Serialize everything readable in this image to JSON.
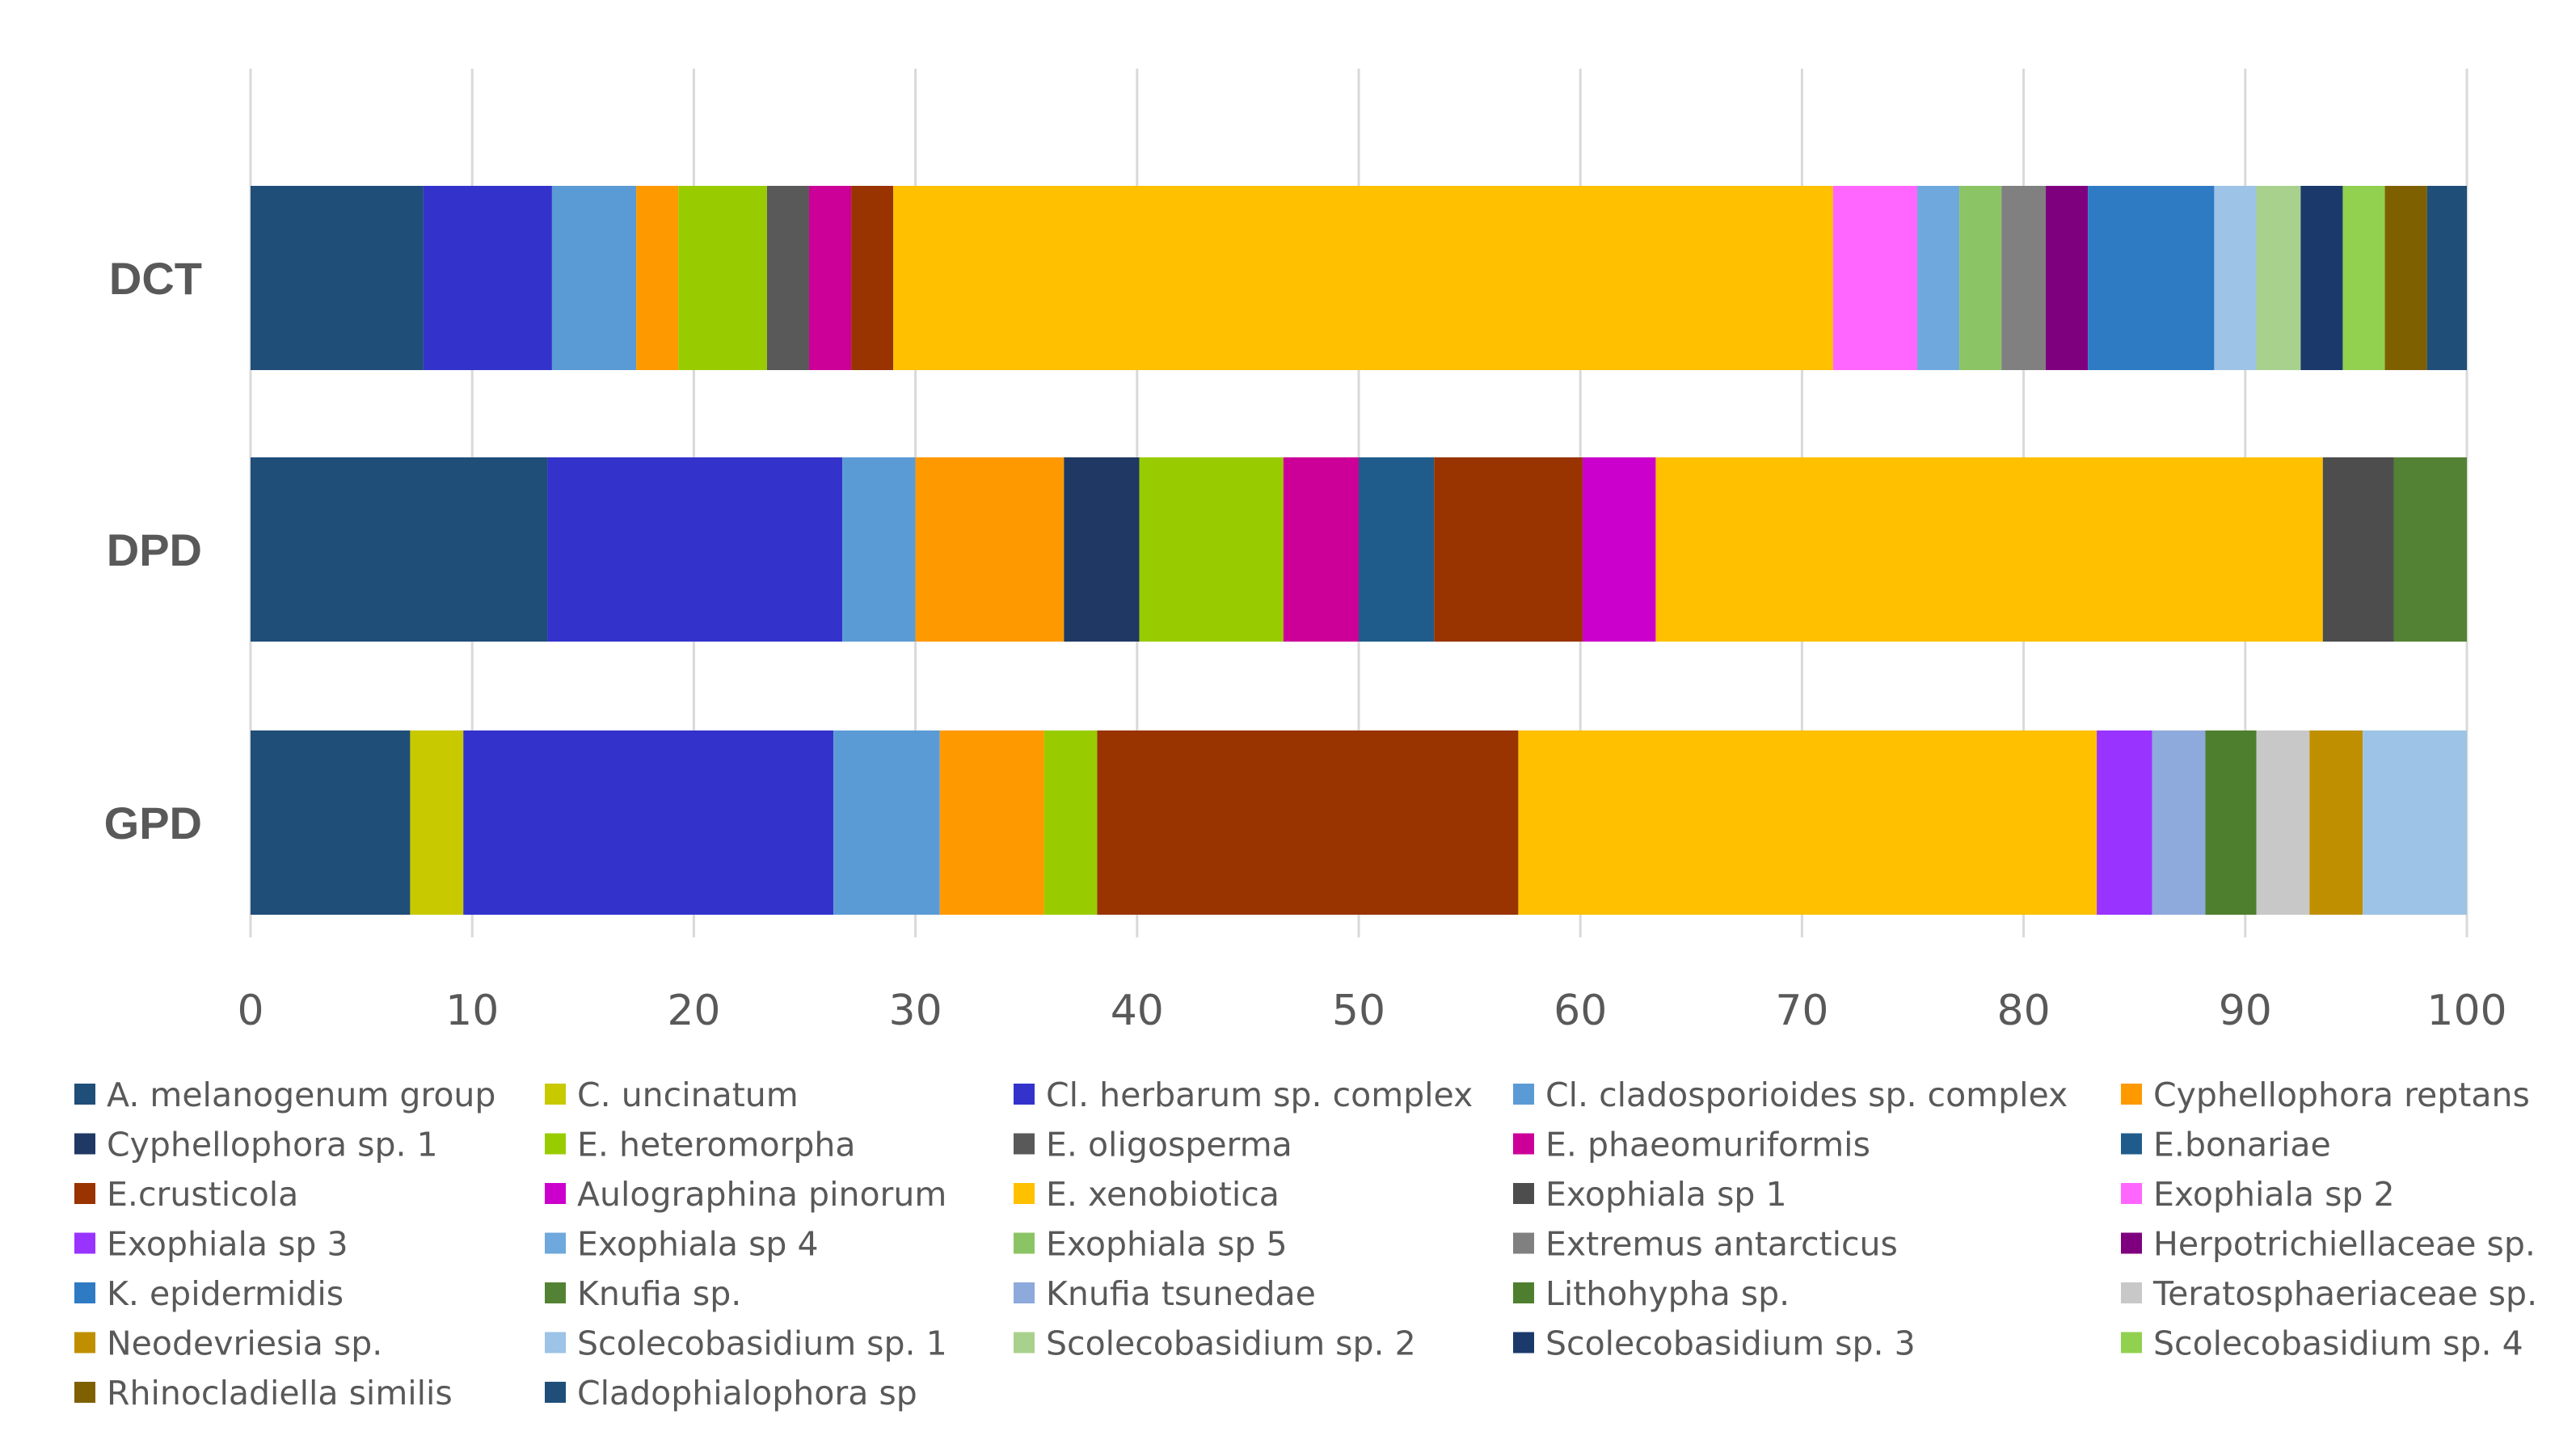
{
  "chart_data": {
    "type": "bar",
    "orientation": "horizontal",
    "stacked": true,
    "title": "",
    "xlabel": "",
    "ylabel": "",
    "xlim": [
      0,
      100
    ],
    "xticks": [
      0,
      10,
      20,
      30,
      40,
      50,
      60,
      70,
      80,
      90,
      100
    ],
    "grid": true,
    "legend_position": "bottom",
    "categories": [
      "DCT",
      "DPD",
      "GPD"
    ],
    "series": [
      {
        "name": "A. melanogenum group",
        "color": "#1F4E79",
        "values": [
          7.8,
          13.4,
          7.2
        ]
      },
      {
        "name": "C. uncinatum",
        "color": "#C9C900",
        "values": [
          0,
          0,
          2.4
        ]
      },
      {
        "name": "Cl. herbarum sp. complex",
        "color": "#3333CC",
        "values": [
          5.8,
          13.3,
          16.7
        ]
      },
      {
        "name": "Cl. cladosporioides sp. complex",
        "color": "#5B9BD5",
        "values": [
          3.8,
          3.3,
          4.8
        ]
      },
      {
        "name": "Cyphellophora reptans",
        "color": "#FF9900",
        "values": [
          1.9,
          6.7,
          4.7
        ]
      },
      {
        "name": "Cyphellophora sp. 1",
        "color": "#203864",
        "values": [
          0,
          3.4,
          0
        ]
      },
      {
        "name": "E. heteromorpha",
        "color": "#99CC00",
        "values": [
          4.0,
          6.5,
          2.4
        ]
      },
      {
        "name": "E. oligosperma",
        "color": "#595959",
        "values": [
          1.9,
          0,
          0
        ]
      },
      {
        "name": "E. phaeomuriformis",
        "color": "#CC0099",
        "values": [
          1.9,
          3.4,
          0
        ]
      },
      {
        "name": "E.bonariae",
        "color": "#1F5C8B",
        "values": [
          0,
          3.4,
          0
        ]
      },
      {
        "name": "E.crusticola",
        "color": "#993300",
        "values": [
          1.9,
          6.7,
          19.0
        ]
      },
      {
        "name": "Aulographina pinorum",
        "color": "#CC00CC",
        "values": [
          0,
          3.3,
          0
        ]
      },
      {
        "name": "E. xenobiotica",
        "color": "#FFC000",
        "values": [
          42.4,
          30.1,
          26.1
        ]
      },
      {
        "name": "Exophiala sp 1",
        "color": "#4D4D4D",
        "values": [
          0,
          3.2,
          0
        ]
      },
      {
        "name": "Exophiala sp 2",
        "color": "#FF66FF",
        "values": [
          3.8,
          0,
          0
        ]
      },
      {
        "name": "Exophiala sp 3",
        "color": "#9933FF",
        "values": [
          0,
          0,
          2.5
        ]
      },
      {
        "name": "Exophiala sp 4",
        "color": "#6FA8DC",
        "values": [
          1.9,
          0,
          0
        ]
      },
      {
        "name": "Exophiala sp 5",
        "color": "#8BC465",
        "values": [
          1.9,
          0,
          0
        ]
      },
      {
        "name": "Extremus antarcticus",
        "color": "#808080",
        "values": [
          2.0,
          0,
          0
        ]
      },
      {
        "name": "Herpotrichiellaceae sp.",
        "color": "#7F007F",
        "values": [
          1.9,
          0,
          0
        ]
      },
      {
        "name": "K. epidermidis",
        "color": "#2E7BC4",
        "values": [
          5.7,
          0,
          0
        ]
      },
      {
        "name": "Knufia sp.",
        "color": "#548235",
        "values": [
          0,
          3.3,
          0
        ]
      },
      {
        "name": "Knufia tsunedae",
        "color": "#8EA9DB",
        "values": [
          0,
          0,
          2.4
        ]
      },
      {
        "name": "Lithohypha sp.",
        "color": "#4E7F2E",
        "values": [
          0,
          0,
          2.3
        ]
      },
      {
        "name": "Teratosphaeriaceae sp.",
        "color": "#C8C8C8",
        "values": [
          0,
          0,
          2.4
        ]
      },
      {
        "name": "Neodevriesia sp.",
        "color": "#BF8F00",
        "values": [
          0,
          0,
          2.4
        ]
      },
      {
        "name": "Scolecobasidium sp. 1",
        "color": "#9DC3E6",
        "values": [
          1.9,
          0,
          4.7
        ]
      },
      {
        "name": "Scolecobasidium sp. 2",
        "color": "#A9D18E",
        "values": [
          2.0,
          0,
          0
        ]
      },
      {
        "name": "Scolecobasidium sp. 3",
        "color": "#1B3A6B",
        "values": [
          1.9,
          0,
          0
        ]
      },
      {
        "name": "Scolecobasidium sp. 4",
        "color": "#92D050",
        "values": [
          1.9,
          0,
          0
        ]
      },
      {
        "name": "Rhinocladiella similis",
        "color": "#7F6000",
        "values": [
          1.9,
          0,
          0
        ]
      },
      {
        "name": "Cladophialophora sp",
        "color": "#1F4E79",
        "values": [
          1.9,
          0,
          0
        ]
      }
    ]
  }
}
